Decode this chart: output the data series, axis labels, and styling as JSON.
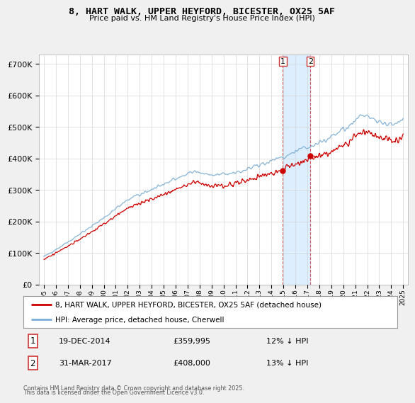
{
  "title": "8, HART WALK, UPPER HEYFORD, BICESTER, OX25 5AF",
  "subtitle": "Price paid vs. HM Land Registry's House Price Index (HPI)",
  "ylim": [
    0,
    730000
  ],
  "yticks": [
    0,
    100000,
    200000,
    300000,
    400000,
    500000,
    600000,
    700000
  ],
  "sale1": {
    "date": "19-DEC-2014",
    "price": 359995,
    "pct": "12% ↓ HPI"
  },
  "sale2": {
    "date": "31-MAR-2017",
    "price": 408000,
    "pct": "13% ↓ HPI"
  },
  "sale1_x": 2014.96,
  "sale2_x": 2017.25,
  "legend1": "8, HART WALK, UPPER HEYFORD, BICESTER, OX25 5AF (detached house)",
  "legend2": "HPI: Average price, detached house, Cherwell",
  "footer": "Contains HM Land Registry data © Crown copyright and database right 2025.\nThis data is licensed under the Open Government Licence v3.0.",
  "line_color_red": "#cc0000",
  "line_color_blue": "#7aadd4",
  "shaded_color": "#ddeeff",
  "background_color": "#f0f0f0",
  "plot_bg": "#ffffff",
  "xlim_start": 1995,
  "xlim_end": 2025
}
